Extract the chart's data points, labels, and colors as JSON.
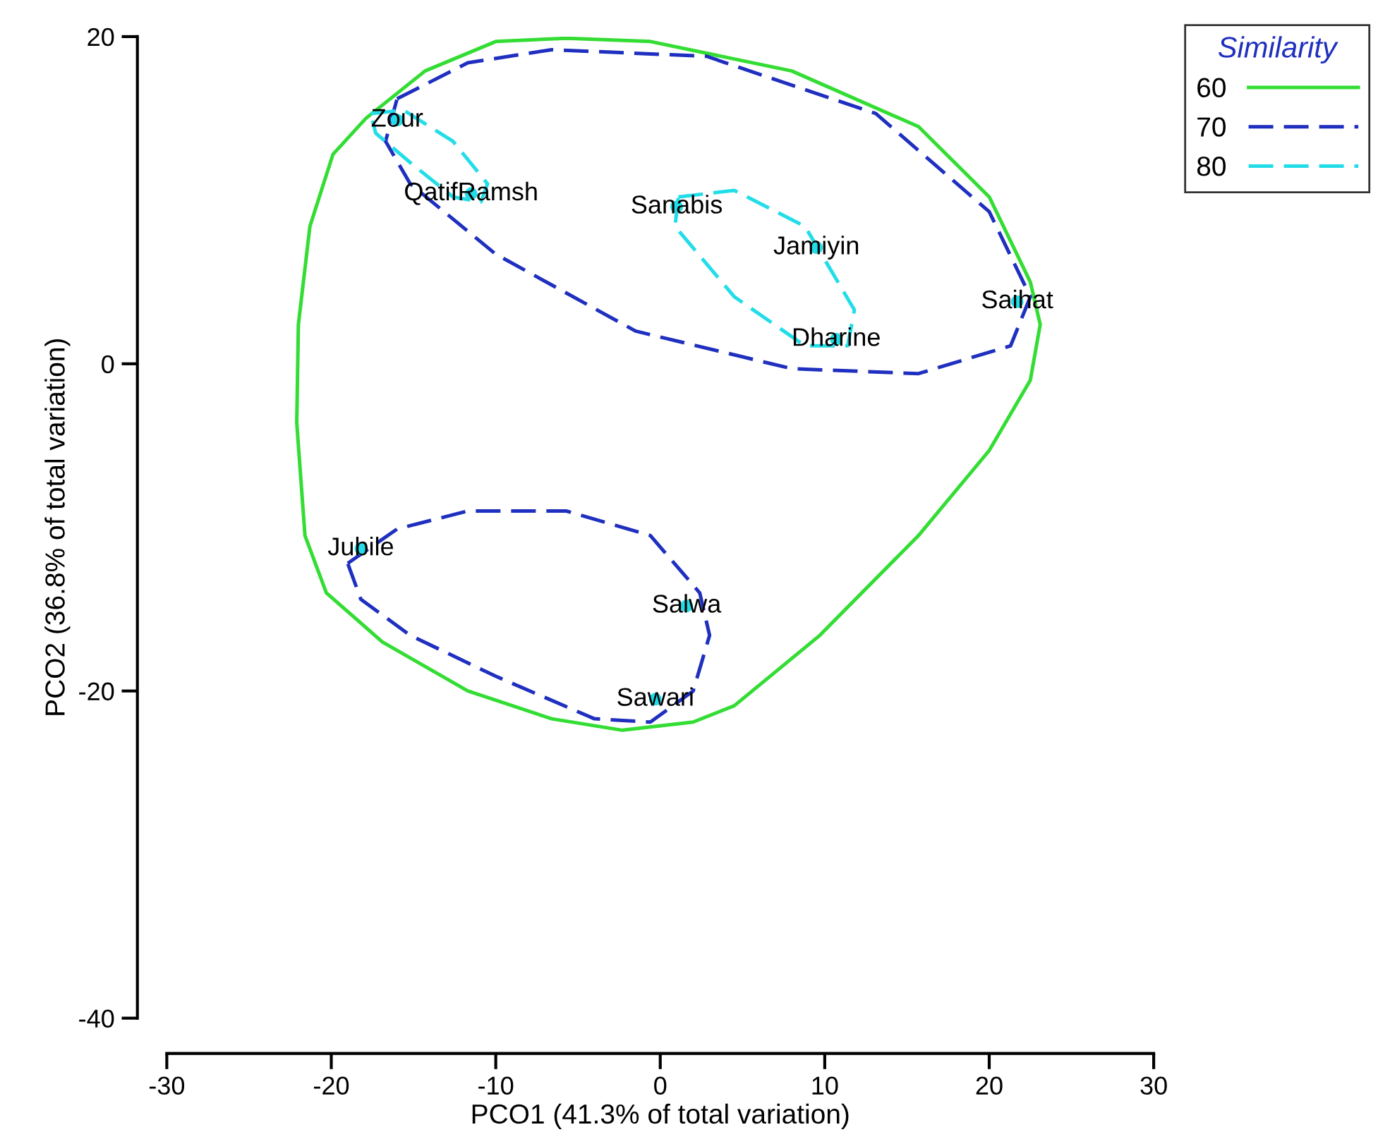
{
  "chart_data": {
    "type": "scatter",
    "xlabel": "PCO1 (41.3% of total variation)",
    "ylabel": "PCO2 (36.8% of total variation)",
    "legend_title": "Similarity",
    "legend": "top right",
    "grid": false,
    "xlim": [
      -30,
      30
    ],
    "xticks": [
      -30,
      -20,
      -10,
      0,
      10,
      20,
      30
    ],
    "ylim": [
      -40,
      20
    ],
    "yticks": [
      -40,
      -20,
      0,
      20
    ],
    "series": [
      {
        "name": "60",
        "type": "line",
        "color": "#33dd33",
        "line_style": "solid"
      },
      {
        "name": "70",
        "type": "line",
        "color": "#1f2fbf",
        "line_style": "dashed"
      },
      {
        "name": "80",
        "type": "line",
        "color": "#22dde8",
        "line_style": "dashed"
      },
      {
        "color": "#22dde8",
        "x": [
          -16.0,
          -11.5,
          1.0,
          9.5,
          10.7,
          21.7,
          -18.2,
          1.6,
          -0.3
        ],
        "values": [
          14.9,
          10.4,
          9.6,
          7.1,
          1.5,
          3.8,
          -11.3,
          -14.8,
          -20.5
        ]
      }
    ],
    "annotations": [
      {
        "text": "Zour",
        "x": -16.0,
        "y": 14.9
      },
      {
        "text": "QatifRamsh",
        "x": -11.5,
        "y": 10.4
      },
      {
        "text": "Sanabis",
        "x": 1.0,
        "y": 9.6
      },
      {
        "text": "Jamiyin",
        "x": 9.5,
        "y": 7.1
      },
      {
        "text": "Dharine",
        "x": 10.7,
        "y": 1.5
      },
      {
        "text": "Saihat",
        "x": 21.7,
        "y": 3.8
      },
      {
        "text": "Jubile",
        "x": -18.2,
        "y": -11.3
      },
      {
        "text": "Salwa",
        "x": 1.6,
        "y": -14.8
      },
      {
        "text": "Sawari",
        "x": -0.3,
        "y": -20.5
      }
    ]
  }
}
